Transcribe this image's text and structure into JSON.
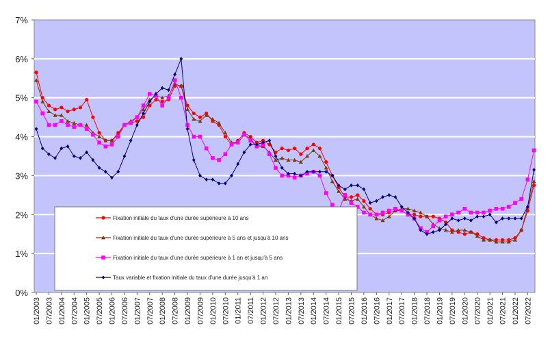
{
  "chart_data": {
    "type": "line",
    "title": "",
    "xlabel": "",
    "ylabel": "",
    "ylim": [
      0,
      7
    ],
    "yticks": [
      "0%",
      "1%",
      "2%",
      "3%",
      "4%",
      "5%",
      "6%",
      "7%"
    ],
    "xticks": [
      "01/2003",
      "07/2003",
      "01/2004",
      "07/2004",
      "01/2005",
      "07/2005",
      "01/2006",
      "07/2006",
      "01/2007",
      "07/2007",
      "01/2008",
      "07/2008",
      "01/2009",
      "07/2009",
      "01/2010",
      "07/2010",
      "01/2011",
      "07/2011",
      "01/2012",
      "07/2012",
      "01/2013",
      "07/2013",
      "01/2014",
      "07/2014",
      "01/2015",
      "07/2015",
      "01/2016",
      "07/2016",
      "01/2017",
      "07/2017",
      "01/2018",
      "07/2018",
      "01/2019",
      "07/2019",
      "01/2020",
      "07/2020",
      "01/2021",
      "07/2021",
      "01/2022",
      "07/2022"
    ],
    "grid": true,
    "background_color": "#c4c4fc",
    "legend_position": "bottom-left inside",
    "x": [
      "01/2003",
      "04/2003",
      "07/2003",
      "10/2003",
      "01/2004",
      "04/2004",
      "07/2004",
      "10/2004",
      "01/2005",
      "04/2005",
      "07/2005",
      "10/2005",
      "01/2006",
      "04/2006",
      "07/2006",
      "10/2006",
      "01/2007",
      "04/2007",
      "07/2007",
      "10/2007",
      "01/2008",
      "04/2008",
      "07/2008",
      "10/2008",
      "01/2009",
      "04/2009",
      "07/2009",
      "10/2009",
      "01/2010",
      "04/2010",
      "07/2010",
      "10/2010",
      "01/2011",
      "04/2011",
      "07/2011",
      "10/2011",
      "01/2012",
      "04/2012",
      "07/2012",
      "10/2012",
      "01/2013",
      "04/2013",
      "07/2013",
      "10/2013",
      "01/2014",
      "04/2014",
      "07/2014",
      "10/2014",
      "01/2015",
      "04/2015",
      "07/2015",
      "10/2015",
      "01/2016",
      "04/2016",
      "07/2016",
      "10/2016",
      "01/2017",
      "04/2017",
      "07/2017",
      "10/2017",
      "01/2018",
      "04/2018",
      "07/2018",
      "10/2018",
      "01/2019",
      "04/2019",
      "07/2019",
      "10/2019",
      "01/2020",
      "04/2020",
      "07/2020",
      "10/2020",
      "01/2021",
      "04/2021",
      "07/2021",
      "10/2021",
      "01/2022",
      "04/2022",
      "07/2022",
      "10/2022"
    ],
    "series": [
      {
        "name": "Fixation initiale du taux d'une durée supérieure à 10 ans",
        "color": "#ff0000",
        "marker": "circle",
        "values": [
          5.65,
          5.0,
          4.8,
          4.7,
          4.75,
          4.65,
          4.7,
          4.75,
          4.95,
          4.5,
          4.1,
          3.9,
          3.9,
          4.1,
          4.3,
          4.35,
          4.4,
          4.5,
          4.8,
          4.95,
          4.9,
          4.95,
          5.3,
          5.3,
          4.8,
          4.6,
          4.5,
          4.6,
          4.4,
          4.3,
          4.0,
          3.8,
          3.9,
          4.1,
          4.0,
          3.85,
          3.9,
          3.8,
          3.6,
          3.7,
          3.65,
          3.7,
          3.55,
          3.7,
          3.8,
          3.7,
          3.35,
          3.0,
          2.7,
          2.45,
          2.45,
          2.5,
          2.35,
          2.15,
          2.0,
          2.0,
          2.05,
          2.1,
          2.1,
          2.0,
          2.0,
          1.95,
          1.95,
          1.95,
          1.9,
          1.8,
          1.6,
          1.55,
          1.5,
          1.55,
          1.5,
          1.4,
          1.35,
          1.35,
          1.35,
          1.35,
          1.4,
          1.6,
          2.1,
          2.75
        ]
      },
      {
        "name": "Fixation initiale du taux d'une durée supérieure à 5 ans et  jusqu'à 10 ans",
        "color": "#7b3b10",
        "marker": "triangle",
        "values": [
          5.45,
          4.9,
          4.65,
          4.55,
          4.55,
          4.4,
          4.35,
          4.3,
          4.3,
          4.1,
          4.0,
          3.9,
          3.9,
          4.05,
          4.3,
          4.4,
          4.5,
          4.7,
          4.95,
          5.05,
          5.0,
          5.05,
          5.35,
          5.3,
          4.7,
          4.45,
          4.4,
          4.55,
          4.45,
          4.35,
          4.1,
          3.85,
          3.85,
          4.05,
          3.95,
          3.75,
          3.75,
          3.6,
          3.4,
          3.45,
          3.4,
          3.4,
          3.35,
          3.5,
          3.65,
          3.5,
          3.2,
          2.85,
          2.6,
          2.4,
          2.35,
          2.4,
          2.2,
          2.0,
          1.9,
          1.85,
          1.95,
          2.1,
          2.15,
          2.15,
          2.1,
          2.05,
          1.95,
          1.75,
          1.65,
          1.6,
          1.55,
          1.6,
          1.6,
          1.55,
          1.45,
          1.35,
          1.35,
          1.3,
          1.3,
          1.3,
          1.35,
          1.6,
          2.2,
          2.85
        ]
      },
      {
        "name": "Fixation initiale du taux d'une durée supérieure à 1 an et  jusqu'à 5 ans",
        "color": "#ff00ff",
        "marker": "square",
        "values": [
          4.9,
          4.6,
          4.3,
          4.3,
          4.4,
          4.3,
          4.25,
          4.3,
          4.2,
          4.05,
          3.85,
          3.75,
          3.8,
          4.0,
          4.3,
          4.35,
          4.5,
          4.8,
          5.1,
          5.05,
          4.8,
          5.0,
          5.45,
          5.0,
          4.3,
          4.0,
          4.0,
          3.7,
          3.45,
          3.4,
          3.55,
          3.8,
          3.85,
          4.05,
          3.9,
          3.75,
          3.8,
          3.55,
          3.2,
          3.0,
          3.0,
          2.95,
          3.0,
          3.05,
          3.1,
          3.0,
          2.55,
          2.25,
          2.1,
          2.5,
          2.3,
          2.2,
          2.05,
          2.0,
          2.0,
          2.05,
          2.1,
          2.15,
          2.1,
          2.0,
          1.9,
          1.65,
          1.55,
          1.7,
          1.85,
          1.95,
          2.0,
          2.05,
          2.15,
          2.05,
          2.05,
          2.05,
          2.1,
          2.15,
          2.15,
          2.2,
          2.3,
          2.4,
          2.9,
          3.65
        ]
      },
      {
        "name": "Taux variable et fixation initiale du taux d'une durée jusqu'à 1 an",
        "color": "#000080",
        "marker": "diamond",
        "values": [
          4.2,
          3.7,
          3.55,
          3.45,
          3.7,
          3.75,
          3.5,
          3.45,
          3.6,
          3.4,
          3.2,
          3.1,
          2.95,
          3.1,
          3.5,
          3.9,
          4.3,
          4.6,
          4.9,
          5.1,
          5.25,
          5.2,
          5.6,
          6.0,
          4.2,
          3.4,
          3.0,
          2.9,
          2.9,
          2.8,
          2.8,
          3.0,
          3.3,
          3.6,
          3.8,
          3.8,
          3.85,
          3.9,
          3.5,
          3.2,
          3.05,
          3.05,
          3.0,
          3.1,
          3.1,
          3.1,
          3.1,
          3.0,
          2.75,
          2.65,
          2.75,
          2.75,
          2.65,
          2.3,
          2.35,
          2.45,
          2.5,
          2.45,
          2.2,
          2.05,
          1.9,
          1.6,
          1.5,
          1.55,
          1.6,
          1.75,
          1.9,
          1.85,
          1.9,
          1.85,
          1.95,
          1.95,
          2.0,
          1.8,
          1.9,
          1.9,
          1.9,
          1.9,
          2.2,
          3.15
        ]
      }
    ]
  }
}
